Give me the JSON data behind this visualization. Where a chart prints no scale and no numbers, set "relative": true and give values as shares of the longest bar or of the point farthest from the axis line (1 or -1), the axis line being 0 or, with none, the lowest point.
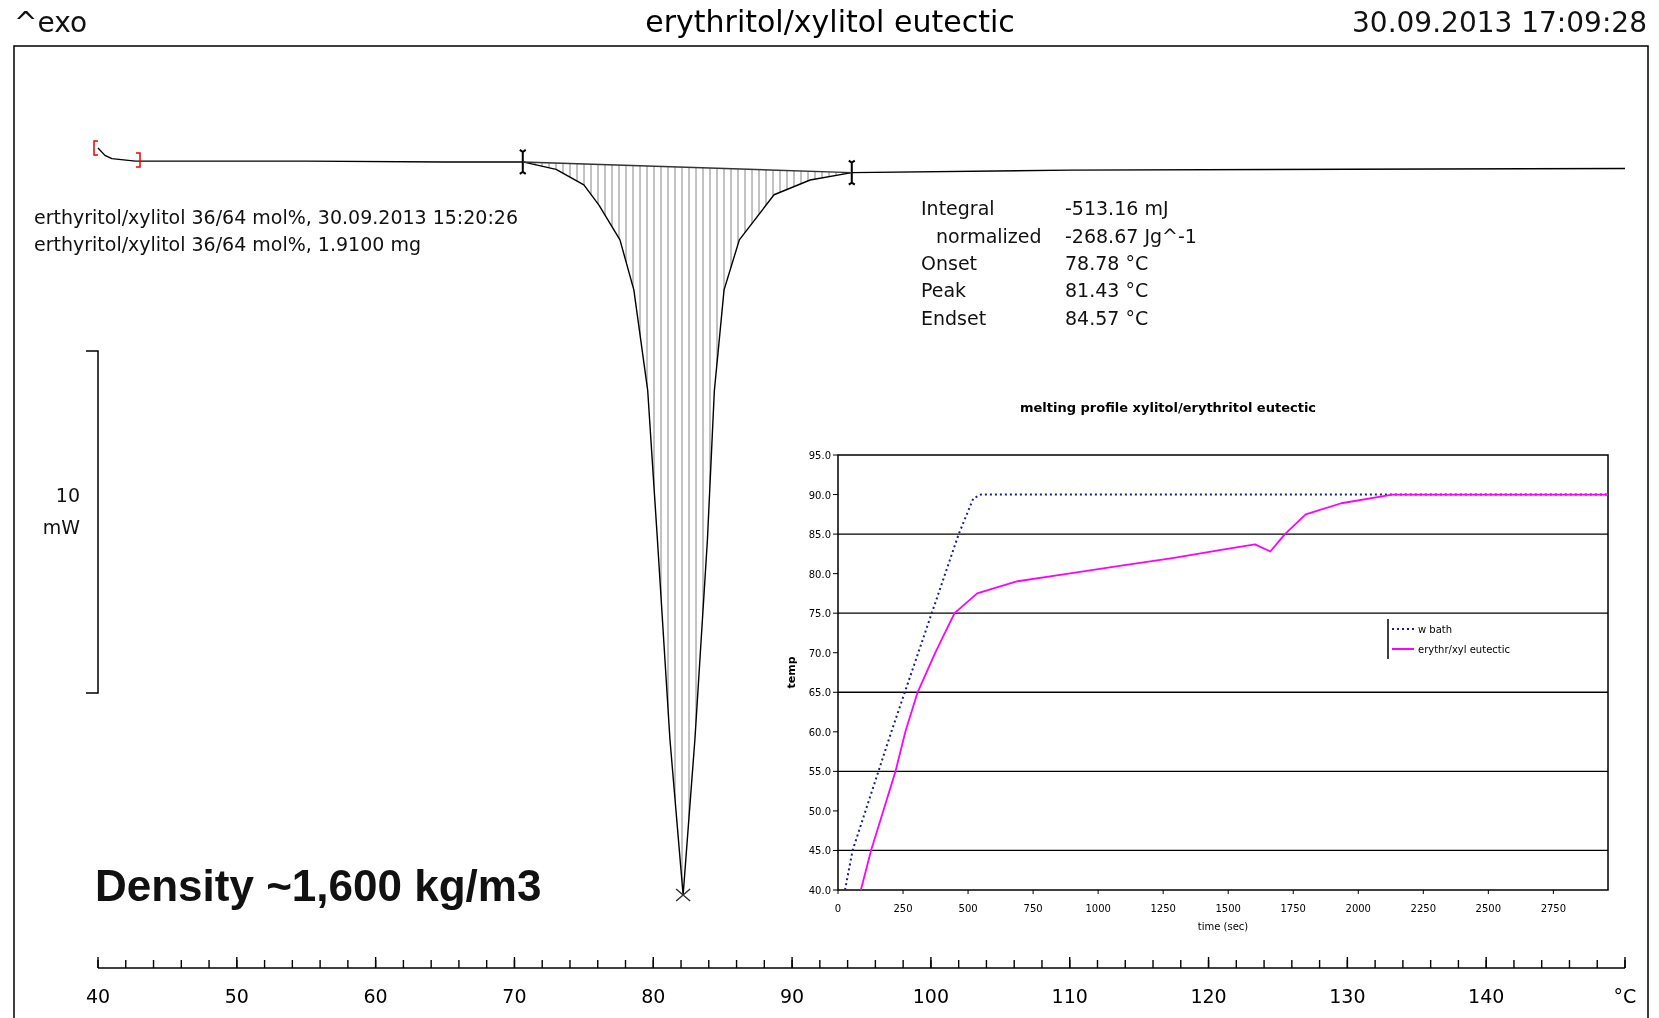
{
  "chart_data": [
    {
      "type": "line",
      "title": "erythritol/xylitol eutectic",
      "relative": true,
      "xlim": [
        40,
        150
      ],
      "xticks": [
        40,
        50,
        60,
        70,
        80,
        90,
        100,
        110,
        120,
        130,
        140,
        {
          "value": 150,
          "label": "°C"
        }
      ],
      "x": [
        40.0,
        40.5,
        41.0,
        42.7,
        55,
        65,
        70.6,
        73,
        75,
        76.1,
        77.6,
        78.6,
        79.6,
        80.3,
        81.2,
        82.15,
        83.0,
        83.9,
        84.4,
        85.1,
        86.2,
        88.7,
        91.3,
        94.3,
        110,
        130,
        150
      ],
      "series": [
        {
          "color": "#000000",
          "values": [
            1.0,
            0.991,
            0.987,
            0.984,
            0.984,
            0.983,
            0.983,
            0.974,
            0.955,
            0.93,
            0.888,
            0.827,
            0.704,
            0.522,
            0.279,
            0.089,
            0.279,
            0.522,
            0.704,
            0.827,
            0.888,
            0.943,
            0.961,
            0.97,
            0.973,
            0.974,
            0.975
          ]
        },
        {
          "color": "#333333",
          "x": [
            70.6,
            94.3
          ],
          "values": [
            0.983,
            0.97
          ]
        }
      ],
      "annotations": [
        "^exo",
        "30.09.2013 17:09:28",
        "erthyritol/xylitol 36/64 mol%, 30.09.2013 15:20:26",
        "erthyritol/xylitol 36/64 mol%, 1.9100 mg",
        "Integral",
        "-513.16 mJ",
        "normalized",
        "-268.67 Jg^-1",
        "Onset",
        "78.78 °C",
        "Peak",
        "81.43 °C",
        "Endset",
        "84.57 °C",
        "10",
        "mW",
        "Density ~1,600 kg/m3"
      ]
    },
    {
      "type": "line",
      "title": "melting profile xylitol/erythritol eutectic",
      "xlabel": "time (sec)",
      "ylabel": "temp",
      "xlim": [
        0,
        2960
      ],
      "xticks": [
        0,
        250,
        500,
        750,
        1000,
        1250,
        1500,
        1750,
        2000,
        2250,
        2500,
        2750
      ],
      "ylim": [
        40,
        95
      ],
      "yticks": [
        {
          "value": 40,
          "label": "40.0"
        },
        {
          "value": 45,
          "label": "45.0"
        },
        {
          "value": 50,
          "label": "50.0"
        },
        {
          "value": 55,
          "label": "55.0"
        },
        {
          "value": 60,
          "label": "60.0"
        },
        {
          "value": 65,
          "label": "65.0"
        },
        {
          "value": 70,
          "label": "70.0"
        },
        {
          "value": 75,
          "label": "75.0"
        },
        {
          "value": 80,
          "label": "80.0"
        },
        {
          "value": 85,
          "label": "85.0"
        },
        {
          "value": 90,
          "label": "90.0"
        },
        {
          "value": 95,
          "label": "95.0"
        }
      ],
      "ref_lines": [
        {
          "axis": "y",
          "value": 45
        },
        {
          "axis": "y",
          "value": 55
        },
        {
          "axis": "y",
          "value": 65
        },
        {
          "axis": "y",
          "value": 75
        },
        {
          "axis": "y",
          "value": 85
        }
      ],
      "legend": "right",
      "series": [
        {
          "name": "w bath",
          "color": "#1c1c8a",
          "line_style": "dotted",
          "x": [
            27,
            56,
            205,
            464,
            520,
            549,
            1000,
            2000,
            2960
          ],
          "values": [
            40,
            45,
            60,
            85,
            89.5,
            90,
            90,
            90,
            90
          ]
        },
        {
          "name": "erythr/xyl eutectic",
          "color": "#ff00ff",
          "line_style": "solid",
          "x": [
            88,
            127,
            174,
            221,
            259,
            306,
            374,
            448,
            535,
            684,
            886,
            1089,
            1292,
            1473,
            1603,
            1662,
            1718,
            1798,
            1935,
            2131,
            2960
          ],
          "values": [
            40,
            45,
            50,
            55,
            60,
            65,
            70,
            75,
            77.5,
            79,
            80,
            81,
            82,
            83,
            83.7,
            82.8,
            85,
            87.5,
            88.9,
            90,
            90
          ]
        }
      ]
    }
  ]
}
